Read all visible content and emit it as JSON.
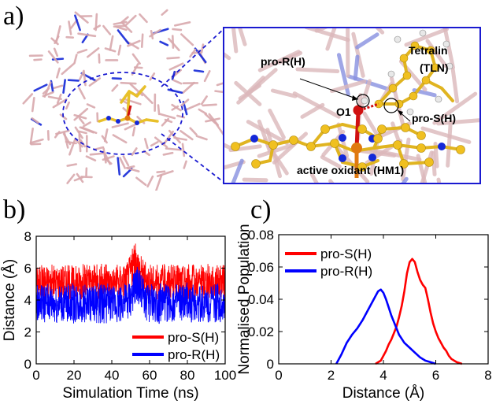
{
  "panels": {
    "a": "a)",
    "b": "b)",
    "c": "c)"
  },
  "molecule": {
    "labels": {
      "pro_r": "pro-R(H)",
      "tetralin_line1": "Tetralin",
      "tetralin_line2": "(TLN)",
      "o1": "O1",
      "pro_s": "pro-S(H)",
      "oxidant": "active oxidant (HM1)"
    },
    "colors": {
      "cage": "#d9a9ad",
      "ligand": "#e8c02a",
      "nitrogen": "#1428d8",
      "iron": "#e07a10",
      "oxygen": "#d01010",
      "zoom_frame": "#1a1ad0"
    }
  },
  "chart_data": [
    {
      "id": "b",
      "type": "line",
      "xlabel": "Simulation Time (ns)",
      "ylabel": "Distance (Å)",
      "xlim": [
        0,
        100
      ],
      "ylim": [
        0,
        8
      ],
      "xticks": [
        0,
        20,
        40,
        60,
        80,
        100
      ],
      "yticks": [
        0,
        2,
        4,
        6,
        8
      ],
      "legend_position": "bottom-right",
      "series": [
        {
          "name": "pro-S(H)",
          "color": "#ff0000",
          "x": [
            0,
            5,
            10,
            15,
            20,
            25,
            30,
            35,
            40,
            45,
            48,
            50,
            52,
            54,
            56,
            58,
            60,
            65,
            70,
            75,
            80,
            85,
            90,
            95,
            100
          ],
          "mean": [
            5.0,
            5.1,
            5.0,
            5.1,
            5.0,
            5.1,
            5.0,
            5.0,
            5.1,
            5.0,
            5.2,
            5.6,
            6.2,
            6.0,
            5.4,
            5.1,
            5.0,
            5.0,
            5.1,
            5.0,
            5.0,
            5.1,
            5.0,
            5.0,
            5.0
          ],
          "low": [
            4.0,
            4.0,
            4.0,
            4.1,
            4.0,
            4.0,
            4.1,
            4.0,
            4.0,
            4.0,
            4.2,
            4.6,
            5.0,
            5.0,
            4.4,
            4.1,
            4.0,
            4.0,
            4.0,
            4.1,
            4.0,
            4.0,
            4.0,
            4.1,
            4.0
          ],
          "high": [
            6.2,
            6.3,
            6.2,
            6.3,
            6.2,
            6.3,
            6.2,
            6.3,
            6.2,
            6.3,
            6.5,
            7.0,
            7.6,
            7.4,
            6.8,
            6.4,
            6.3,
            6.2,
            6.3,
            6.2,
            6.3,
            6.2,
            6.3,
            6.2,
            6.2
          ]
        },
        {
          "name": "pro-R(H)",
          "color": "#0000ff",
          "x": [
            0,
            5,
            10,
            15,
            20,
            25,
            30,
            35,
            40,
            45,
            48,
            50,
            52,
            54,
            56,
            58,
            60,
            65,
            70,
            75,
            80,
            85,
            90,
            95,
            100
          ],
          "mean": [
            3.9,
            3.9,
            3.8,
            3.9,
            3.9,
            3.9,
            3.8,
            3.9,
            3.9,
            3.9,
            3.9,
            4.1,
            4.7,
            5.2,
            4.6,
            4.0,
            3.9,
            3.9,
            3.9,
            3.8,
            3.9,
            3.9,
            3.9,
            3.9,
            3.9
          ],
          "low": [
            2.6,
            2.6,
            2.5,
            2.6,
            2.5,
            2.6,
            2.6,
            2.5,
            2.6,
            2.6,
            2.6,
            2.8,
            3.5,
            3.8,
            3.2,
            2.7,
            2.6,
            2.5,
            2.6,
            2.6,
            2.5,
            2.6,
            2.6,
            2.5,
            2.6
          ],
          "high": [
            5.0,
            5.1,
            5.0,
            5.0,
            5.1,
            5.0,
            5.0,
            5.1,
            5.0,
            5.0,
            5.1,
            5.3,
            5.8,
            6.2,
            5.6,
            5.1,
            5.0,
            5.1,
            5.0,
            5.0,
            5.1,
            5.0,
            5.0,
            5.1,
            5.0
          ]
        }
      ]
    },
    {
      "id": "c",
      "type": "line",
      "xlabel": "Distance (Å)",
      "ylabel": "Normalised Population",
      "xlim": [
        0,
        8
      ],
      "ylim": [
        0,
        0.08
      ],
      "xticks": [
        0,
        2,
        4,
        6,
        8
      ],
      "yticks": [
        0,
        0.02,
        0.04,
        0.06,
        0.08
      ],
      "ytick_labels": [
        "0",
        "0.02",
        "0.04",
        "0.06",
        "0.08"
      ],
      "legend_position": "top-left",
      "series": [
        {
          "name": "pro-S(H)",
          "color": "#ff0000",
          "x": [
            3.7,
            3.9,
            4.0,
            4.1,
            4.2,
            4.3,
            4.4,
            4.5,
            4.6,
            4.7,
            4.8,
            4.9,
            5.0,
            5.1,
            5.2,
            5.3,
            5.4,
            5.5,
            5.6,
            5.7,
            5.8,
            5.9,
            6.0,
            6.1,
            6.2,
            6.3,
            6.4,
            6.5,
            6.6,
            6.7,
            6.8,
            7.0
          ],
          "y": [
            0,
            0.002,
            0.005,
            0.008,
            0.012,
            0.015,
            0.019,
            0.023,
            0.029,
            0.036,
            0.045,
            0.056,
            0.063,
            0.065,
            0.063,
            0.057,
            0.052,
            0.049,
            0.047,
            0.04,
            0.032,
            0.025,
            0.02,
            0.016,
            0.013,
            0.01,
            0.008,
            0.005,
            0.003,
            0.002,
            0.001,
            0
          ]
        },
        {
          "name": "pro-R(H)",
          "color": "#0000ff",
          "x": [
            2.2,
            2.4,
            2.6,
            2.8,
            3.0,
            3.2,
            3.4,
            3.6,
            3.8,
            3.9,
            4.0,
            4.1,
            4.2,
            4.3,
            4.4,
            4.5,
            4.6,
            4.8,
            5.0,
            5.2,
            5.4,
            5.6,
            5.8,
            6.0
          ],
          "y": [
            0,
            0.006,
            0.013,
            0.018,
            0.022,
            0.027,
            0.033,
            0.039,
            0.045,
            0.046,
            0.044,
            0.04,
            0.035,
            0.03,
            0.026,
            0.022,
            0.018,
            0.013,
            0.01,
            0.007,
            0.004,
            0.002,
            0.001,
            0
          ]
        }
      ]
    }
  ]
}
